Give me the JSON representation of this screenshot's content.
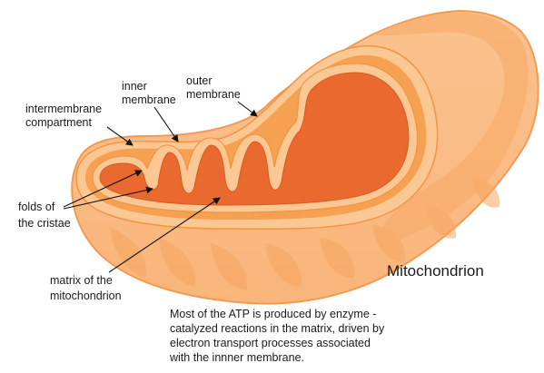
{
  "labels": {
    "intermembrane_compartment": [
      "intermembrane",
      "compartment"
    ],
    "inner_membrane": [
      "inner",
      "membrane"
    ],
    "outer_membrane": [
      "outer",
      "membrane"
    ],
    "folds_of_cristae": [
      "folds of",
      "the cristae"
    ],
    "matrix": [
      "matrix of the",
      "mitochondrion"
    ]
  },
  "title": "Mitochondrion",
  "caption": [
    "Most of the ATP is produced by enzyme -",
    "catalyzed reactions in the matrix, driven by",
    "electron transport processes associated",
    "with the innner membrane."
  ],
  "colors": {
    "outer_body": "#f9b57a",
    "outer_rim": "#f7a25e",
    "membrane": "#fbc793",
    "intermembrane_space": "#f6a051",
    "matrix": "#e9692f",
    "background": "#ffffff"
  }
}
